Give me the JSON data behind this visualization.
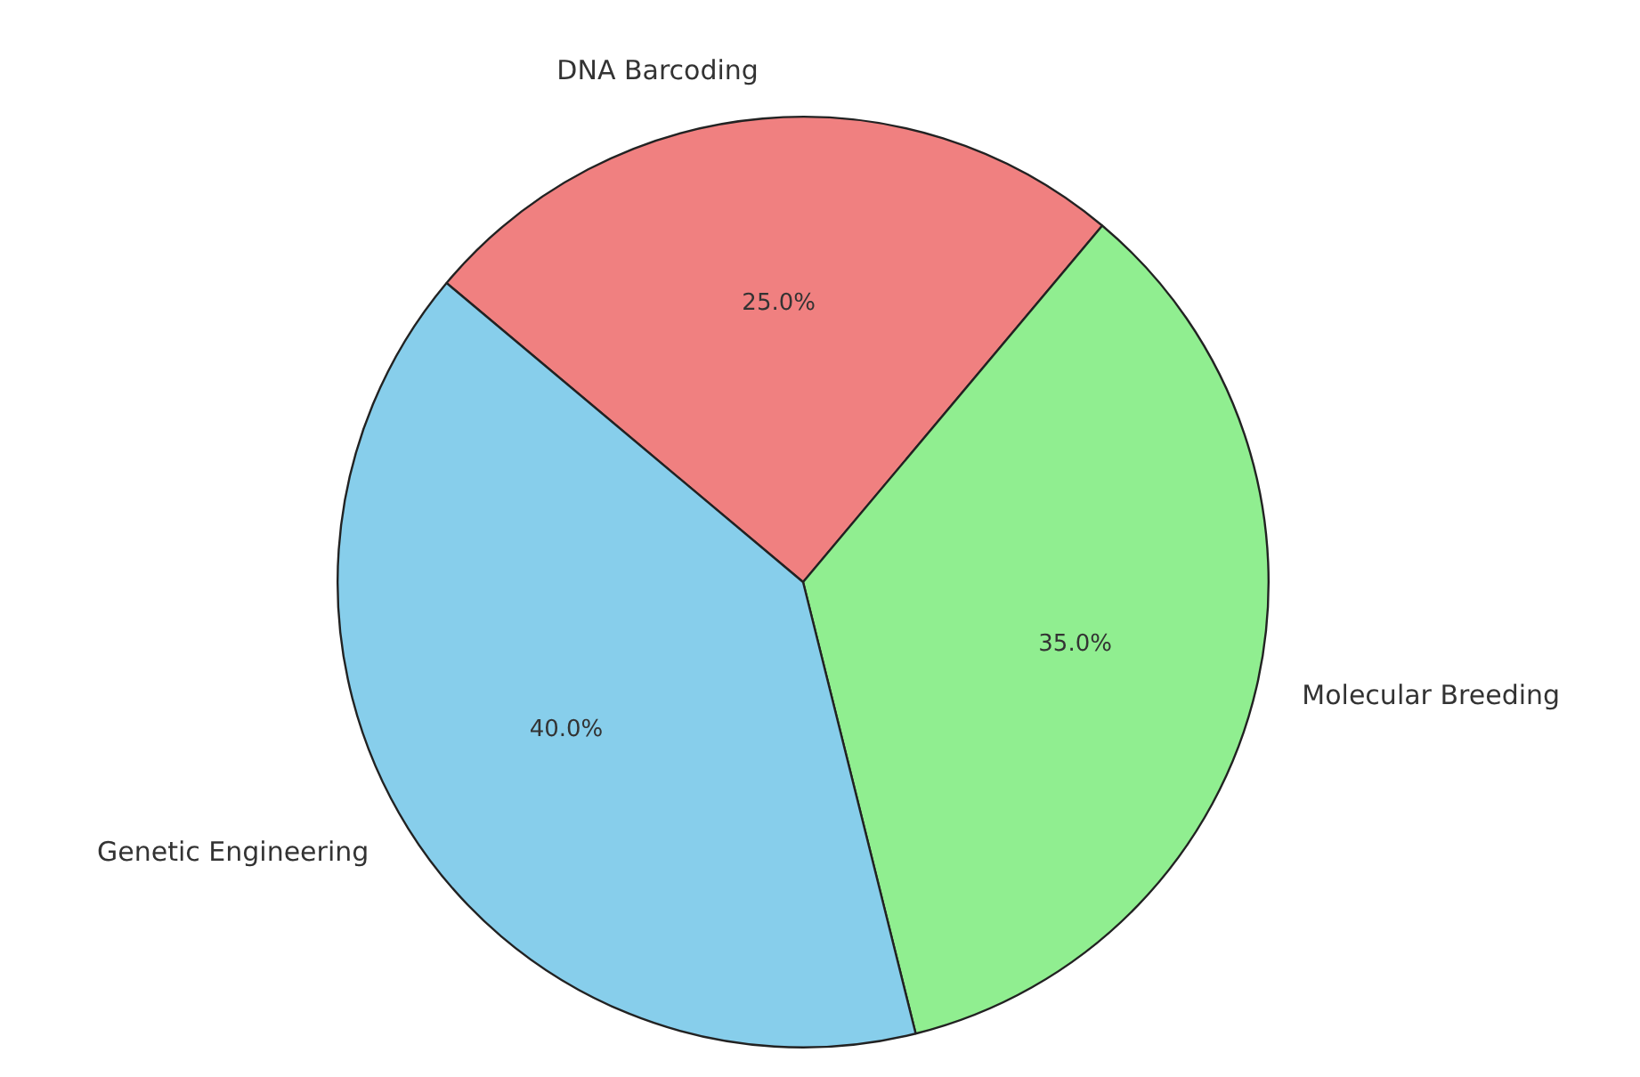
{
  "chart_data": {
    "type": "pie",
    "categories": [
      "DNA Barcoding",
      "Molecular Breeding",
      "Genetic Engineering"
    ],
    "values": [
      25,
      35,
      40
    ],
    "colors": [
      "#f08080",
      "#90ee90",
      "#87ceeb"
    ],
    "value_labels": [
      "25.0%",
      "35.0%",
      "40.0%"
    ],
    "legend": false
  }
}
